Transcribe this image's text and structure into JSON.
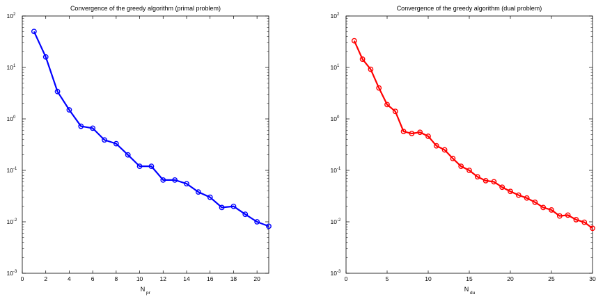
{
  "chart_data": [
    {
      "type": "line",
      "title": "Convergence of the greedy algorithm (primal problem)",
      "xlabel": {
        "main": "N",
        "sub": "pr"
      },
      "ylabel": "",
      "xlim": [
        0,
        21
      ],
      "ylim": [
        0.001,
        100
      ],
      "yscale": "log",
      "xticks": [
        0,
        2,
        4,
        6,
        8,
        10,
        12,
        14,
        16,
        18,
        20
      ],
      "yticks": [
        {
          "base": "10",
          "exp": "-3",
          "value": 0.001
        },
        {
          "base": "10",
          "exp": "-2",
          "value": 0.01
        },
        {
          "base": "10",
          "exp": "-1",
          "value": 0.1
        },
        {
          "base": "10",
          "exp": "0",
          "value": 1
        },
        {
          "base": "10",
          "exp": "1",
          "value": 10
        },
        {
          "base": "10",
          "exp": "2",
          "value": 100
        }
      ],
      "color": "#0000ff",
      "series": [
        {
          "x": [
            1,
            2,
            3,
            4,
            5,
            6,
            7,
            8,
            9,
            10,
            11,
            12,
            13,
            14,
            15,
            16,
            17,
            18,
            19,
            20,
            21
          ],
          "values": [
            50,
            16,
            3.4,
            1.5,
            0.72,
            0.66,
            0.39,
            0.33,
            0.2,
            0.12,
            0.12,
            0.065,
            0.065,
            0.055,
            0.038,
            0.03,
            0.019,
            0.02,
            0.014,
            0.01,
            0.0082
          ]
        }
      ]
    },
    {
      "type": "line",
      "title": "Convergence of the greedy algorithm (dual problem)",
      "xlabel": {
        "main": "N",
        "sub": "du"
      },
      "ylabel": "",
      "xlim": [
        0,
        30
      ],
      "ylim": [
        0.001,
        100
      ],
      "yscale": "log",
      "xticks": [
        0,
        5,
        10,
        15,
        20,
        25,
        30
      ],
      "yticks": [
        {
          "base": "10",
          "exp": "-3",
          "value": 0.001
        },
        {
          "base": "10",
          "exp": "-2",
          "value": 0.01
        },
        {
          "base": "10",
          "exp": "-1",
          "value": 0.1
        },
        {
          "base": "10",
          "exp": "0",
          "value": 1
        },
        {
          "base": "10",
          "exp": "1",
          "value": 10
        },
        {
          "base": "10",
          "exp": "2",
          "value": 100
        }
      ],
      "color": "#ff0000",
      "series": [
        {
          "x": [
            1,
            2,
            3,
            4,
            5,
            6,
            7,
            8,
            9,
            10,
            11,
            12,
            13,
            14,
            15,
            16,
            17,
            18,
            19,
            20,
            21,
            22,
            23,
            24,
            25,
            26,
            27,
            28,
            29,
            30
          ],
          "values": [
            33,
            14.5,
            9.2,
            4.0,
            1.9,
            1.4,
            0.57,
            0.52,
            0.55,
            0.46,
            0.3,
            0.25,
            0.17,
            0.12,
            0.1,
            0.075,
            0.063,
            0.06,
            0.047,
            0.039,
            0.033,
            0.029,
            0.024,
            0.019,
            0.017,
            0.013,
            0.0135,
            0.011,
            0.0098,
            0.0075
          ]
        }
      ]
    }
  ]
}
